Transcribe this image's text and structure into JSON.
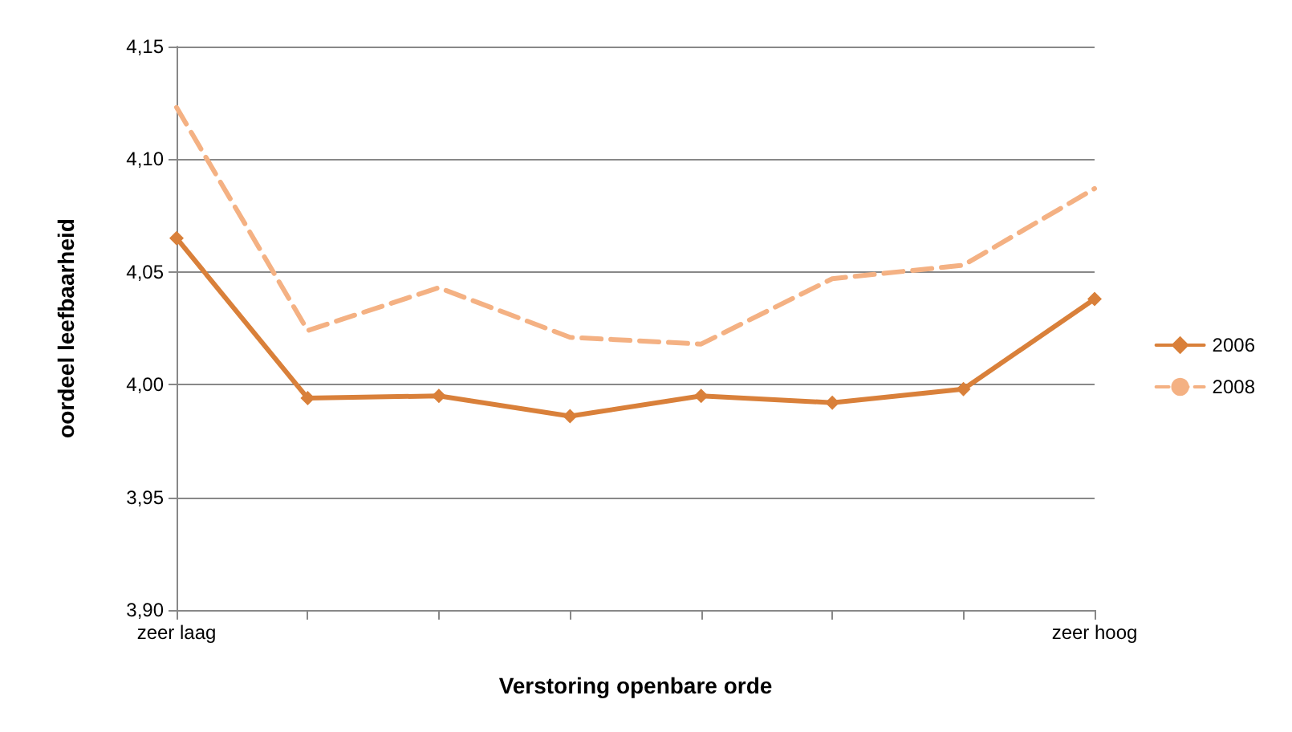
{
  "chart_data": {
    "type": "line",
    "xlabel": "Verstoring openbare orde",
    "ylabel": "oordeel leefbaarheid",
    "categories": [
      "zeer laag",
      null,
      null,
      null,
      null,
      null,
      null,
      "zeer hoog"
    ],
    "series": [
      {
        "name": "2006",
        "color": "#d9803a",
        "marker": "diamond",
        "line_style": "solid",
        "values": [
          4.065,
          3.994,
          3.995,
          3.986,
          3.995,
          3.992,
          3.998,
          4.038
        ]
      },
      {
        "name": "2008",
        "color": "#f4b183",
        "marker": "none",
        "line_style": "dashed",
        "values": [
          4.123,
          4.024,
          4.043,
          4.021,
          4.018,
          4.047,
          4.053,
          4.087
        ]
      }
    ],
    "ylim": [
      3.9,
      4.15
    ],
    "yticks": [
      {
        "value": 3.9,
        "label": "3,90"
      },
      {
        "value": 3.95,
        "label": "3,95"
      },
      {
        "value": 4.0,
        "label": "4,00"
      },
      {
        "value": 4.05,
        "label": "4,05"
      },
      {
        "value": 4.1,
        "label": "4,10"
      },
      {
        "value": 4.15,
        "label": "4,15"
      }
    ],
    "grid": "y",
    "legend": "right"
  }
}
